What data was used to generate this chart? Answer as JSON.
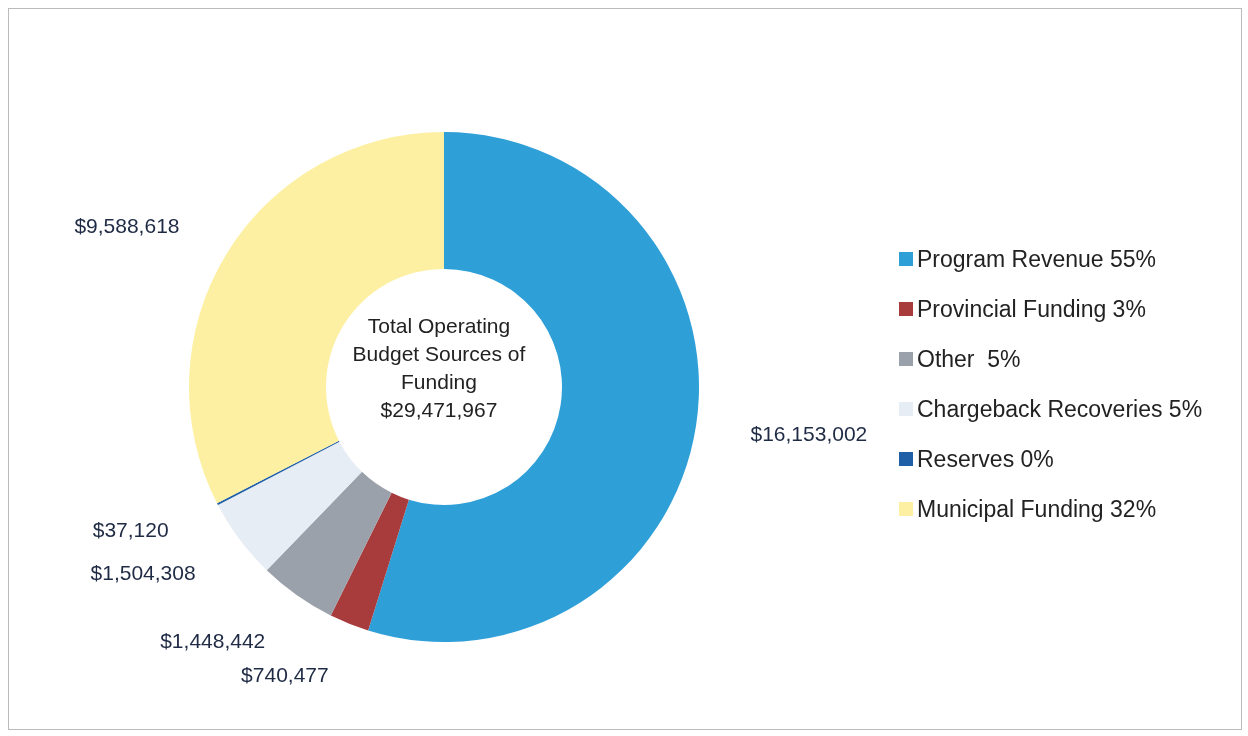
{
  "chart_data": {
    "type": "donut",
    "title": "Total Operating Budget Sources of Funding $29,471,967",
    "categories": [
      "Program Revenue 55%",
      "Provincial Funding 3%",
      "Other  5%",
      "Chargeback Recoveries 5%",
      "Reserves 0%",
      "Municipal Funding 32%"
    ],
    "values": [
      16153002,
      740477,
      1448442,
      1504308,
      37120,
      9588618
    ],
    "value_labels": [
      "$16,153,002",
      "$740,477",
      "$1,448,442",
      "$1,504,308",
      "$37,120",
      "$9,588,618"
    ],
    "colors": [
      "#2f9fd8",
      "#a83b3b",
      "#9ba1ab",
      "#e6edf4",
      "#1f5fa8",
      "#fdf0a2"
    ],
    "legend": "right"
  }
}
